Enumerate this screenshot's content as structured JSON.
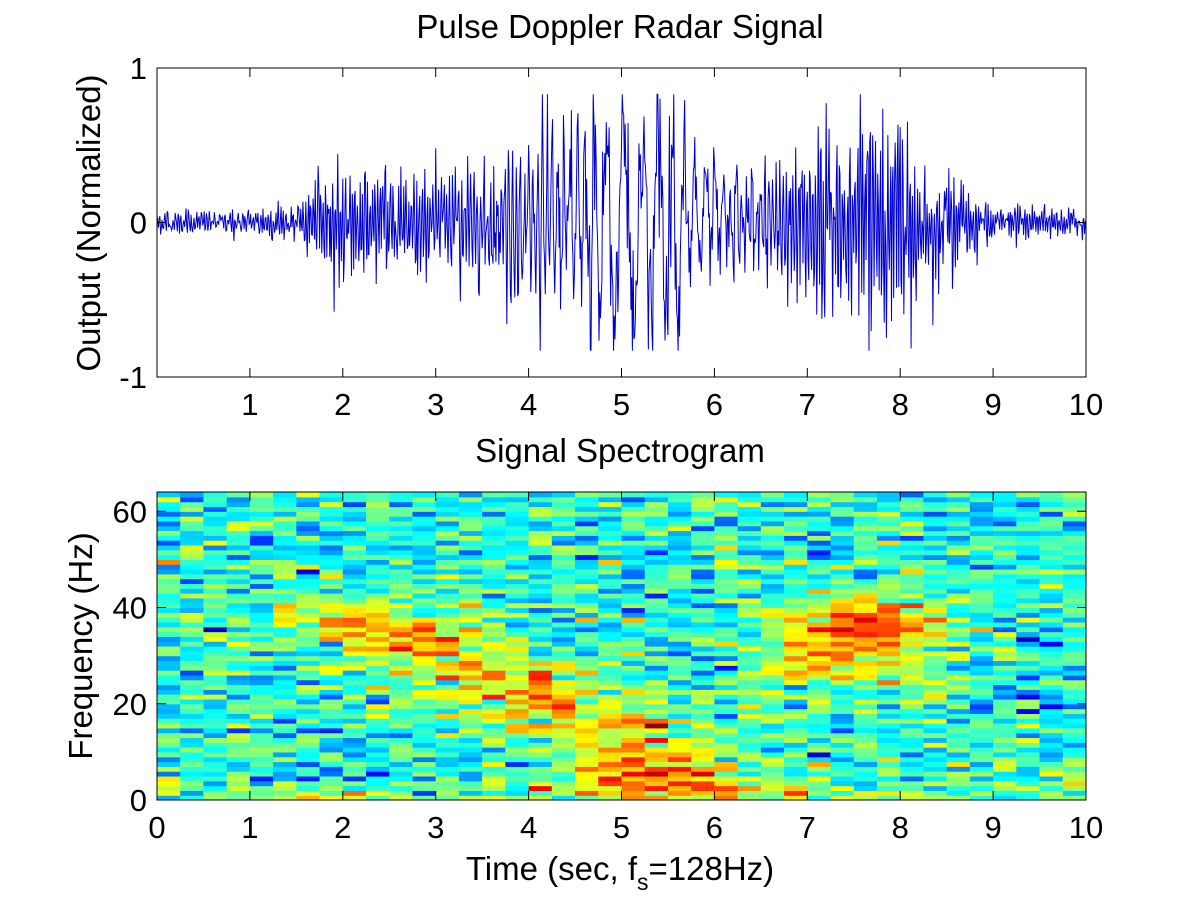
{
  "chart_data": [
    {
      "type": "line",
      "title": "Pulse Doppler Radar Signal",
      "xlabel": "",
      "ylabel": "Output (Normalized)",
      "xlim": [
        0,
        10
      ],
      "ylim": [
        -1,
        1
      ],
      "x_ticks": [
        "1",
        "2",
        "3",
        "4",
        "5",
        "6",
        "7",
        "8",
        "9",
        "10"
      ],
      "x_tick_values": [
        1,
        2,
        3,
        4,
        5,
        6,
        7,
        8,
        9,
        10
      ],
      "y_ticks": [
        "-1",
        "0",
        "1"
      ],
      "y_tick_values": [
        -1,
        0,
        1
      ],
      "grid": false,
      "line_color": "#0000cc",
      "sample_rate_hz": 128,
      "envelope_t": [
        0,
        0.5,
        1.0,
        1.5,
        1.8,
        2.0,
        2.5,
        3.0,
        3.5,
        4.0,
        4.5,
        4.8,
        5.0,
        5.3,
        5.6,
        6.0,
        6.5,
        7.0,
        7.5,
        7.7,
        8.0,
        8.5,
        9.0,
        9.5,
        10.0
      ],
      "envelope_amp": [
        0.05,
        0.05,
        0.07,
        0.1,
        0.3,
        0.34,
        0.3,
        0.34,
        0.3,
        0.52,
        0.62,
        0.8,
        0.78,
        0.82,
        0.62,
        0.36,
        0.3,
        0.5,
        0.6,
        0.78,
        0.58,
        0.3,
        0.12,
        0.07,
        0.06
      ],
      "dominant_freq_t": [
        0,
        2,
        3,
        4,
        5,
        6,
        7,
        8,
        10
      ],
      "dominant_freq_hz": [
        35,
        38,
        34,
        22,
        4,
        10,
        34,
        38,
        38
      ]
    },
    {
      "type": "heatmap",
      "title": "Signal Spectrogram",
      "xlabel_main": "Time (sec, f",
      "xlabel_sub": "s",
      "xlabel_tail": "=128Hz)",
      "ylabel": "Frequency (Hz)",
      "xlim": [
        0,
        10
      ],
      "ylim": [
        0,
        64
      ],
      "x_ticks": [
        "0",
        "1",
        "2",
        "3",
        "4",
        "5",
        "6",
        "7",
        "8",
        "9",
        "10"
      ],
      "x_tick_values": [
        0,
        1,
        2,
        3,
        4,
        5,
        6,
        7,
        8,
        9,
        10
      ],
      "y_ticks": [
        "0",
        "20",
        "40",
        "60"
      ],
      "y_tick_values": [
        0,
        20,
        40,
        60
      ],
      "colormap": "jet",
      "time_bins": 40,
      "freq_bins": 64,
      "hot_spots": [
        {
          "t": 2.0,
          "f": 38,
          "st": 0.6,
          "sf": 4,
          "w": 0.75
        },
        {
          "t": 2.8,
          "f": 34,
          "st": 0.5,
          "sf": 4,
          "w": 0.6
        },
        {
          "t": 3.3,
          "f": 28,
          "st": 0.5,
          "sf": 5,
          "w": 0.55
        },
        {
          "t": 4.0,
          "f": 22,
          "st": 0.5,
          "sf": 5,
          "w": 0.7
        },
        {
          "t": 4.6,
          "f": 15,
          "st": 0.5,
          "sf": 5,
          "w": 0.7
        },
        {
          "t": 5.0,
          "f": 5,
          "st": 0.5,
          "sf": 4,
          "w": 1.0
        },
        {
          "t": 5.5,
          "f": 12,
          "st": 0.4,
          "sf": 5,
          "w": 0.6
        },
        {
          "t": 6.1,
          "f": 2,
          "st": 0.5,
          "sf": 3,
          "w": 0.55
        },
        {
          "t": 6.8,
          "f": 28,
          "st": 0.5,
          "sf": 5,
          "w": 0.6
        },
        {
          "t": 7.3,
          "f": 36,
          "st": 0.5,
          "sf": 4,
          "w": 0.75
        },
        {
          "t": 7.9,
          "f": 38,
          "st": 0.5,
          "sf": 4,
          "w": 0.85
        },
        {
          "t": 7.8,
          "f": 30,
          "st": 0.4,
          "sf": 4,
          "w": 0.6
        }
      ]
    }
  ]
}
